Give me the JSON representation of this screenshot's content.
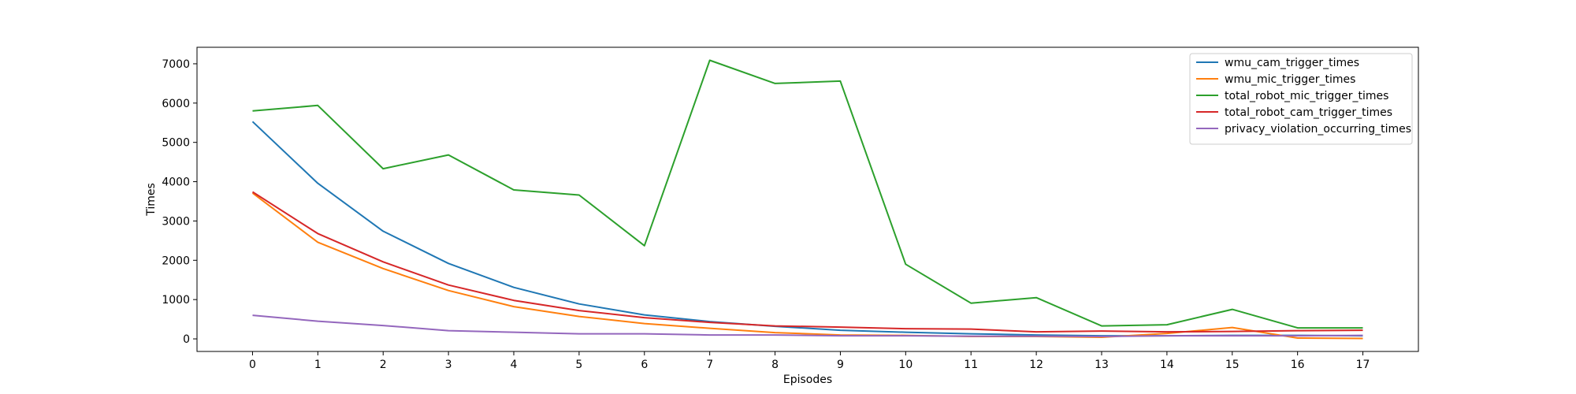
{
  "chart_data": {
    "type": "line",
    "xlabel": "Episodes",
    "ylabel": "Times",
    "x": [
      0,
      1,
      2,
      3,
      4,
      5,
      6,
      7,
      8,
      9,
      10,
      11,
      12,
      13,
      14,
      15,
      16,
      17
    ],
    "xticks": [
      0,
      1,
      2,
      3,
      4,
      5,
      6,
      7,
      8,
      9,
      10,
      11,
      12,
      13,
      14,
      15,
      16,
      17
    ],
    "yticks": [
      0,
      1000,
      2000,
      3000,
      4000,
      5000,
      6000,
      7000
    ],
    "xlim": [
      -0.85,
      17.85
    ],
    "ylim": [
      -320,
      7420
    ],
    "grid": false,
    "legend_position": "top-right",
    "series": [
      {
        "name": "wmu_cam_trigger_times",
        "color": "#1f77b4",
        "values": [
          5530,
          3960,
          2740,
          1920,
          1310,
          890,
          610,
          440,
          320,
          220,
          170,
          130,
          100,
          80,
          80,
          90,
          90,
          80
        ]
      },
      {
        "name": "wmu_mic_trigger_times",
        "color": "#ff7f0e",
        "values": [
          3710,
          2460,
          1790,
          1230,
          820,
          570,
          390,
          270,
          160,
          100,
          90,
          60,
          60,
          40,
          140,
          290,
          20,
          10
        ]
      },
      {
        "name": "total_robot_mic_trigger_times",
        "color": "#2ca02c",
        "values": [
          5800,
          5940,
          4330,
          4680,
          3790,
          3660,
          2370,
          7090,
          6500,
          6560,
          1900,
          910,
          1050,
          330,
          360,
          750,
          280,
          280
        ]
      },
      {
        "name": "total_robot_cam_trigger_times",
        "color": "#d62728",
        "values": [
          3740,
          2680,
          1960,
          1370,
          980,
          720,
          540,
          420,
          330,
          300,
          260,
          250,
          180,
          200,
          180,
          190,
          210,
          220
        ]
      },
      {
        "name": "privacy_violation_occurring_times",
        "color": "#9467bd",
        "values": [
          600,
          450,
          340,
          210,
          170,
          130,
          130,
          100,
          100,
          80,
          80,
          70,
          70,
          60,
          80,
          80,
          80,
          90
        ]
      }
    ]
  }
}
